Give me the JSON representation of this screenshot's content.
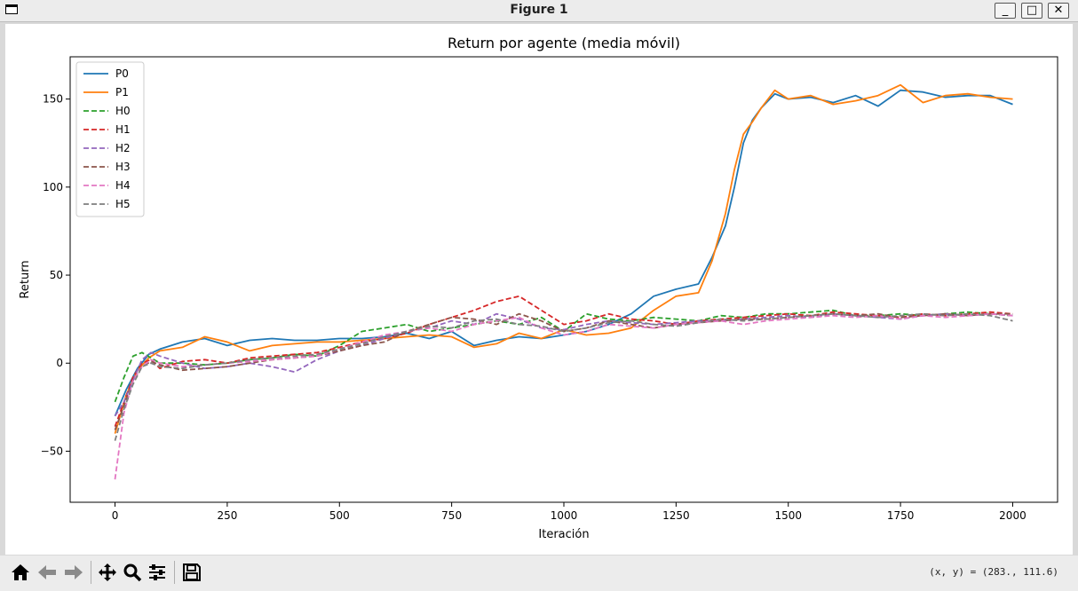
{
  "window": {
    "title": "Figure 1",
    "buttons": {
      "minimize": "_",
      "maximize": "□",
      "close": "✕"
    }
  },
  "toolbar": {
    "items": [
      "home-icon",
      "back-icon",
      "forward-icon",
      "pan-icon",
      "zoom-icon",
      "configure-icon",
      "save-icon"
    ],
    "coords_text": "(x, y) = (283., 111.6)"
  },
  "chart_data": {
    "type": "line",
    "title": "Return por agente (media móvil)",
    "xlabel": "Iteración",
    "ylabel": "Return",
    "xlim": [
      -100,
      2100
    ],
    "ylim": [
      -79,
      174
    ],
    "xticks": [
      0,
      250,
      500,
      750,
      1000,
      1250,
      1500,
      1750,
      2000
    ],
    "yticks": [
      -50,
      0,
      50,
      100,
      150
    ],
    "legend_position": "top-left",
    "grid": false,
    "series": [
      {
        "name": "P0",
        "style": "solid",
        "color": "#1f77b4",
        "x": [
          0,
          25,
          50,
          75,
          100,
          150,
          200,
          250,
          300,
          350,
          400,
          450,
          500,
          550,
          600,
          650,
          700,
          750,
          800,
          850,
          900,
          950,
          1000,
          1050,
          1100,
          1150,
          1200,
          1250,
          1300,
          1330,
          1360,
          1380,
          1400,
          1420,
          1440,
          1470,
          1500,
          1550,
          1600,
          1650,
          1700,
          1750,
          1800,
          1850,
          1900,
          1950,
          2000
        ],
        "y": [
          -30,
          -15,
          -3,
          5,
          8,
          12,
          14,
          10,
          13,
          14,
          13,
          13,
          14,
          14,
          15,
          17,
          14,
          18,
          10,
          13,
          15,
          14,
          16,
          18,
          22,
          28,
          38,
          42,
          45,
          60,
          78,
          100,
          125,
          138,
          145,
          153,
          150,
          151,
          148,
          152,
          146,
          155,
          154,
          151,
          152,
          152,
          147
        ]
      },
      {
        "name": "P1",
        "style": "solid",
        "color": "#ff7f0e",
        "x": [
          0,
          25,
          50,
          75,
          100,
          150,
          200,
          250,
          300,
          350,
          400,
          450,
          500,
          550,
          600,
          650,
          700,
          750,
          800,
          850,
          900,
          950,
          1000,
          1050,
          1100,
          1150,
          1200,
          1250,
          1300,
          1330,
          1360,
          1380,
          1400,
          1420,
          1440,
          1470,
          1500,
          1550,
          1600,
          1650,
          1700,
          1750,
          1800,
          1850,
          1900,
          1950,
          2000
        ],
        "y": [
          -40,
          -18,
          -4,
          3,
          7,
          9,
          15,
          12,
          7,
          10,
          11,
          12,
          12,
          13,
          14,
          15,
          16,
          15,
          9,
          11,
          17,
          14,
          19,
          16,
          17,
          20,
          30,
          38,
          40,
          58,
          85,
          110,
          130,
          137,
          145,
          155,
          150,
          152,
          147,
          149,
          152,
          158,
          148,
          152,
          153,
          151,
          150
        ]
      },
      {
        "name": "H0",
        "style": "dashed",
        "color": "#2ca02c",
        "x": [
          0,
          20,
          40,
          60,
          80,
          100,
          150,
          200,
          250,
          300,
          350,
          400,
          450,
          500,
          550,
          600,
          650,
          700,
          750,
          800,
          850,
          900,
          950,
          1000,
          1050,
          1100,
          1150,
          1200,
          1250,
          1300,
          1350,
          1400,
          1450,
          1500,
          1550,
          1600,
          1650,
          1700,
          1750,
          1800,
          1850,
          1900,
          1950,
          2000
        ],
        "y": [
          -22,
          -8,
          4,
          6,
          3,
          0,
          0,
          -1,
          0,
          2,
          3,
          5,
          4,
          10,
          18,
          20,
          22,
          18,
          20,
          22,
          24,
          22,
          26,
          18,
          28,
          25,
          24,
          26,
          25,
          24,
          27,
          26,
          28,
          28,
          29,
          30,
          27,
          27,
          28,
          27,
          28,
          29,
          28,
          27
        ]
      },
      {
        "name": "H1",
        "style": "dashed",
        "color": "#d62728",
        "x": [
          0,
          20,
          40,
          60,
          80,
          100,
          150,
          200,
          250,
          300,
          350,
          400,
          450,
          500,
          550,
          600,
          650,
          700,
          750,
          800,
          850,
          900,
          950,
          1000,
          1050,
          1100,
          1150,
          1200,
          1250,
          1300,
          1350,
          1400,
          1450,
          1500,
          1550,
          1600,
          1650,
          1700,
          1750,
          1800,
          1850,
          1900,
          1950,
          2000
        ],
        "y": [
          -36,
          -22,
          -8,
          0,
          2,
          -3,
          1,
          2,
          0,
          3,
          4,
          5,
          6,
          9,
          12,
          14,
          17,
          22,
          26,
          30,
          35,
          38,
          30,
          22,
          24,
          28,
          25,
          24,
          22,
          24,
          25,
          26,
          27,
          28,
          27,
          29,
          28,
          27,
          26,
          28,
          27,
          28,
          29,
          28
        ]
      },
      {
        "name": "H2",
        "style": "dashed",
        "color": "#9467bd",
        "x": [
          0,
          20,
          40,
          60,
          80,
          100,
          150,
          200,
          250,
          300,
          350,
          400,
          450,
          500,
          550,
          600,
          650,
          700,
          750,
          800,
          850,
          900,
          950,
          1000,
          1050,
          1100,
          1150,
          1200,
          1250,
          1300,
          1350,
          1400,
          1450,
          1500,
          1550,
          1600,
          1650,
          1700,
          1750,
          1800,
          1850,
          1900,
          1950,
          2000
        ],
        "y": [
          -30,
          -22,
          -10,
          2,
          6,
          4,
          0,
          -3,
          -2,
          0,
          -2,
          -5,
          2,
          7,
          10,
          14,
          18,
          20,
          24,
          22,
          28,
          25,
          20,
          19,
          22,
          24,
          23,
          22,
          23,
          24,
          24,
          25,
          26,
          27,
          26,
          28,
          27,
          26,
          25,
          27,
          28,
          27,
          28,
          27
        ]
      },
      {
        "name": "H3",
        "style": "dashed",
        "color": "#8c564b",
        "x": [
          0,
          20,
          40,
          60,
          80,
          100,
          150,
          200,
          250,
          300,
          350,
          400,
          450,
          500,
          550,
          600,
          650,
          700,
          750,
          800,
          850,
          900,
          950,
          1000,
          1050,
          1100,
          1150,
          1200,
          1250,
          1300,
          1350,
          1400,
          1450,
          1500,
          1550,
          1600,
          1650,
          1700,
          1750,
          1800,
          1850,
          1900,
          1950,
          2000
        ],
        "y": [
          -38,
          -24,
          -10,
          -2,
          1,
          -1,
          -4,
          -3,
          -2,
          0,
          2,
          3,
          4,
          7,
          10,
          12,
          18,
          22,
          26,
          25,
          22,
          28,
          24,
          18,
          20,
          24,
          22,
          20,
          22,
          23,
          24,
          25,
          25,
          26,
          27,
          28,
          27,
          28,
          26,
          27,
          28,
          27,
          28,
          28
        ]
      },
      {
        "name": "H4",
        "style": "dashed",
        "color": "#e377c2",
        "x": [
          0,
          20,
          40,
          60,
          80,
          100,
          150,
          200,
          250,
          300,
          350,
          400,
          450,
          500,
          550,
          600,
          650,
          700,
          750,
          800,
          850,
          900,
          950,
          1000,
          1050,
          1100,
          1150,
          1200,
          1250,
          1300,
          1350,
          1400,
          1450,
          1500,
          1550,
          1600,
          1650,
          1700,
          1750,
          1800,
          1850,
          1900,
          1950,
          2000
        ],
        "y": [
          -66,
          -28,
          -10,
          -2,
          2,
          0,
          -2,
          -1,
          0,
          1,
          2,
          3,
          4,
          8,
          12,
          16,
          18,
          20,
          18,
          22,
          24,
          26,
          20,
          16,
          18,
          22,
          21,
          20,
          22,
          23,
          24,
          22,
          24,
          25,
          26,
          27,
          26,
          27,
          25,
          27,
          26,
          27,
          28,
          27
        ]
      },
      {
        "name": "H5",
        "style": "dashed",
        "color": "#7f7f7f",
        "x": [
          0,
          20,
          40,
          60,
          80,
          100,
          150,
          200,
          250,
          300,
          350,
          400,
          450,
          500,
          550,
          600,
          650,
          700,
          750,
          800,
          850,
          900,
          950,
          1000,
          1050,
          1100,
          1150,
          1200,
          1250,
          1300,
          1350,
          1400,
          1450,
          1500,
          1550,
          1600,
          1650,
          1700,
          1750,
          1800,
          1850,
          1900,
          1950,
          2000
        ],
        "y": [
          -44,
          -26,
          -12,
          -2,
          0,
          -2,
          -3,
          -1,
          0,
          2,
          3,
          4,
          5,
          8,
          11,
          15,
          18,
          21,
          20,
          24,
          25,
          22,
          21,
          18,
          20,
          23,
          24,
          22,
          21,
          23,
          25,
          24,
          25,
          26,
          27,
          28,
          27,
          26,
          27,
          28,
          27,
          28,
          27,
          24
        ]
      }
    ]
  }
}
